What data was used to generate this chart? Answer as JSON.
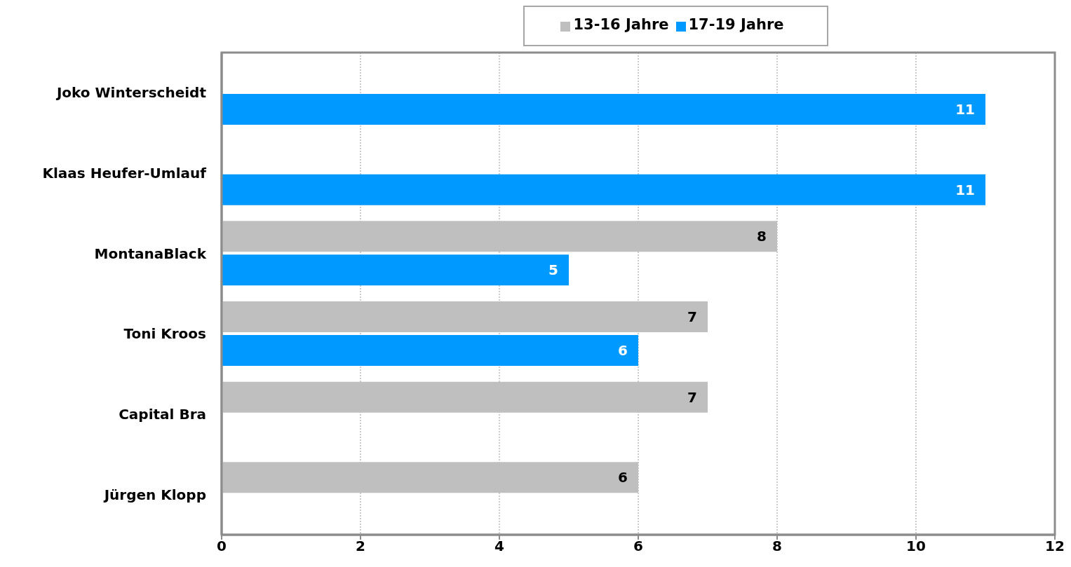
{
  "chart_data": {
    "type": "bar",
    "orientation": "horizontal",
    "categories": [
      "Joko Winterscheidt",
      "Klaas Heufer-Umlauf",
      "MontanaBlack",
      "Toni Kroos",
      "Capital Bra",
      "Jürgen Klopp"
    ],
    "series": [
      {
        "name": "13-16 Jahre",
        "color": "#bfbfbf",
        "values": [
          null,
          null,
          8,
          7,
          7,
          6
        ]
      },
      {
        "name": "17-19 Jahre",
        "color": "#0099ff",
        "values": [
          11,
          11,
          5,
          6,
          null,
          null
        ]
      }
    ],
    "xlim": [
      0,
      12
    ],
    "xticks": [
      0,
      2,
      4,
      6,
      8,
      10,
      12
    ],
    "grid": "x",
    "legend": "top",
    "data_labels": true
  }
}
